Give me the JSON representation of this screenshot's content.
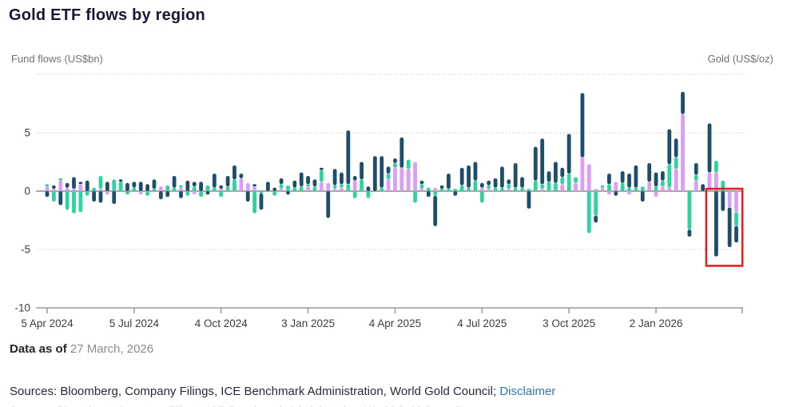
{
  "title": "Gold ETF flows by region",
  "axes": {
    "left_unit": "Fund flows (US$bn)",
    "right_unit": "Gold (US$/oz)",
    "y_tick_labels": [
      "5",
      "0",
      "-5",
      "-10"
    ],
    "y_tick_values": [
      5,
      0,
      -5,
      -10
    ]
  },
  "footer": {
    "data_as_of_label": "Data as of",
    "data_as_of_date": "27 March, 2026",
    "sources_text": "Sources: Bloomberg, Company Filings, ICE Benchmark Administration, World Gold Council;",
    "disclaimer_label": "Disclaimer"
  },
  "colors": {
    "navy": "#1f4e6d",
    "green": "#2ed3a0",
    "purple": "#dc9df4",
    "zero_line": "#a6a6a6",
    "gridline": "#d4d4d4",
    "axis_line": "#9b9b9b",
    "tick_text": "#3d3d3d",
    "highlight_red": "#e02222",
    "link_blue": "#2e74b5"
  },
  "chart_data": {
    "type": "bar",
    "stacked": true,
    "ylabel": "Fund flows (US$bn)",
    "ylabel_right": "Gold (US$/oz)",
    "ylim": [
      -10,
      10
    ],
    "gridlines_dotted_at": [
      10,
      5,
      -5
    ],
    "x_tick_labels": [
      "5 Apr 2024",
      "5 Jul 2024",
      "4 Oct 2024",
      "3 Jan 2025",
      "4 Apr 2025",
      "4 Jul 2025",
      "3 Oct 2025",
      "2 Jan 2026"
    ],
    "x_tick_week_indices": [
      0,
      13,
      26,
      39,
      52,
      65,
      78,
      91
    ],
    "weeks_total": 104,
    "stack_order": [
      "purple",
      "green",
      "navy"
    ],
    "series": [
      {
        "id": "navy",
        "color": "#1f4e6d",
        "values": [
          -0.5,
          0.3,
          -1.2,
          0.4,
          1.0,
          0.2,
          0.9,
          -0.9,
          -1.0,
          0.8,
          -1.1,
          0.2,
          0.7,
          0.5,
          0.8,
          0.6,
          0.8,
          -0.7,
          -0.5,
          1.0,
          -0.6,
          0.9,
          0.4,
          0.8,
          -0.3,
          1.2,
          0.3,
          0.9,
          1.2,
          0.4,
          -0.9,
          0.2,
          -1.4,
          0.8,
          0.3,
          0.5,
          -0.3,
          0.6,
          1.2,
          0.7,
          0.6,
          0.2,
          -2.3,
          1.4,
          1.0,
          4.6,
          0.4,
          1.5,
          0.4,
          3.0,
          2.7,
          0.6,
          0.4,
          2.6,
          0,
          0,
          0.3,
          -0.5,
          -2.6,
          0.3,
          1.3,
          -0.4,
          1.5,
          1.9,
          1.6,
          0.4,
          0.4,
          0.8,
          1.8,
          0.4,
          2.1,
          0.9,
          -1.5,
          2.9,
          3.9,
          0.9,
          1.8,
          0.8,
          3.4,
          0,
          5.5,
          0,
          -0.6,
          0,
          0.9,
          -0.4,
          1.0,
          1.2,
          1.9,
          -0.9,
          1.6,
          1.2,
          0.8,
          3.0,
          1.6,
          1.9,
          -0.6,
          1.0,
          0.6,
          4.2,
          -5.6,
          -1.7,
          -3.4,
          -1.4
        ]
      },
      {
        "id": "green",
        "color": "#2ed3a0",
        "values": [
          0.2,
          -0.9,
          0.2,
          -1.6,
          -1.9,
          -1.8,
          -0.4,
          0.3,
          1.1,
          0,
          1.0,
          0.8,
          -0.3,
          0.3,
          0,
          -0.4,
          0.2,
          0,
          0.5,
          0.3,
          0.2,
          -0.4,
          0.4,
          -0.5,
          0.5,
          0.3,
          -0.5,
          0.4,
          1.0,
          0,
          0,
          -1.9,
          -0.2,
          0,
          -0.4,
          0.4,
          0.5,
          0.3,
          0.4,
          0.2,
          0.4,
          1.0,
          0,
          0.3,
          0.3,
          0.6,
          -0.6,
          1.0,
          -0.6,
          0,
          0.3,
          0.5,
          0.4,
          0,
          0.8,
          -1.0,
          0.4,
          0.3,
          -0.4,
          0.2,
          0.2,
          0.2,
          0.5,
          0.3,
          0.9,
          -1.0,
          0.3,
          0.3,
          0.3,
          0.4,
          0.3,
          0.3,
          0.2,
          0.9,
          0.4,
          0.8,
          0.7,
          0.6,
          1.5,
          0.5,
          0,
          -3.6,
          -2.1,
          0.2,
          0.6,
          0,
          0.7,
          0.3,
          0.3,
          0.4,
          0,
          0.4,
          0.5,
          2.0,
          1.0,
          0,
          -3.3,
          0.5,
          0,
          0,
          1.0,
          0.9,
          0,
          -1.2
        ]
      },
      {
        "id": "purple",
        "color": "#dc9df4",
        "values": [
          0.4,
          0.2,
          0.9,
          0.3,
          0.2,
          0.6,
          0,
          0,
          0.2,
          -0.3,
          0,
          0,
          0,
          0,
          -0.3,
          0,
          0,
          0.4,
          0,
          0,
          0.3,
          0,
          -0.3,
          0,
          0,
          0,
          0.2,
          0,
          0,
          1.1,
          0.7,
          0.4,
          0,
          0,
          0,
          0.2,
          0,
          0,
          0,
          0.4,
          0,
          0.8,
          0.7,
          0.2,
          0.3,
          0,
          0.9,
          0,
          0,
          0,
          0,
          1.0,
          2.0,
          2.0,
          1.9,
          2.5,
          0.2,
          0,
          0.3,
          0,
          0,
          0,
          0,
          0,
          0,
          0.3,
          0.2,
          0,
          0,
          0.2,
          0,
          0,
          0,
          0,
          0.2,
          0,
          0,
          0.6,
          0,
          0.7,
          2.9,
          2.3,
          0.2,
          0.3,
          -0.3,
          0.8,
          0,
          -0.3,
          0,
          0,
          0.8,
          -0.5,
          0.4,
          0.3,
          1.9,
          6.6,
          0,
          0.9,
          0,
          1.6,
          1.6,
          0,
          -1.4,
          -1.8
        ]
      }
    ],
    "highlight_box": {
      "week_start": 98.8,
      "week_end": 104.2,
      "value_top": 0.2,
      "value_bottom": -6.4,
      "color": "#e02222"
    }
  }
}
